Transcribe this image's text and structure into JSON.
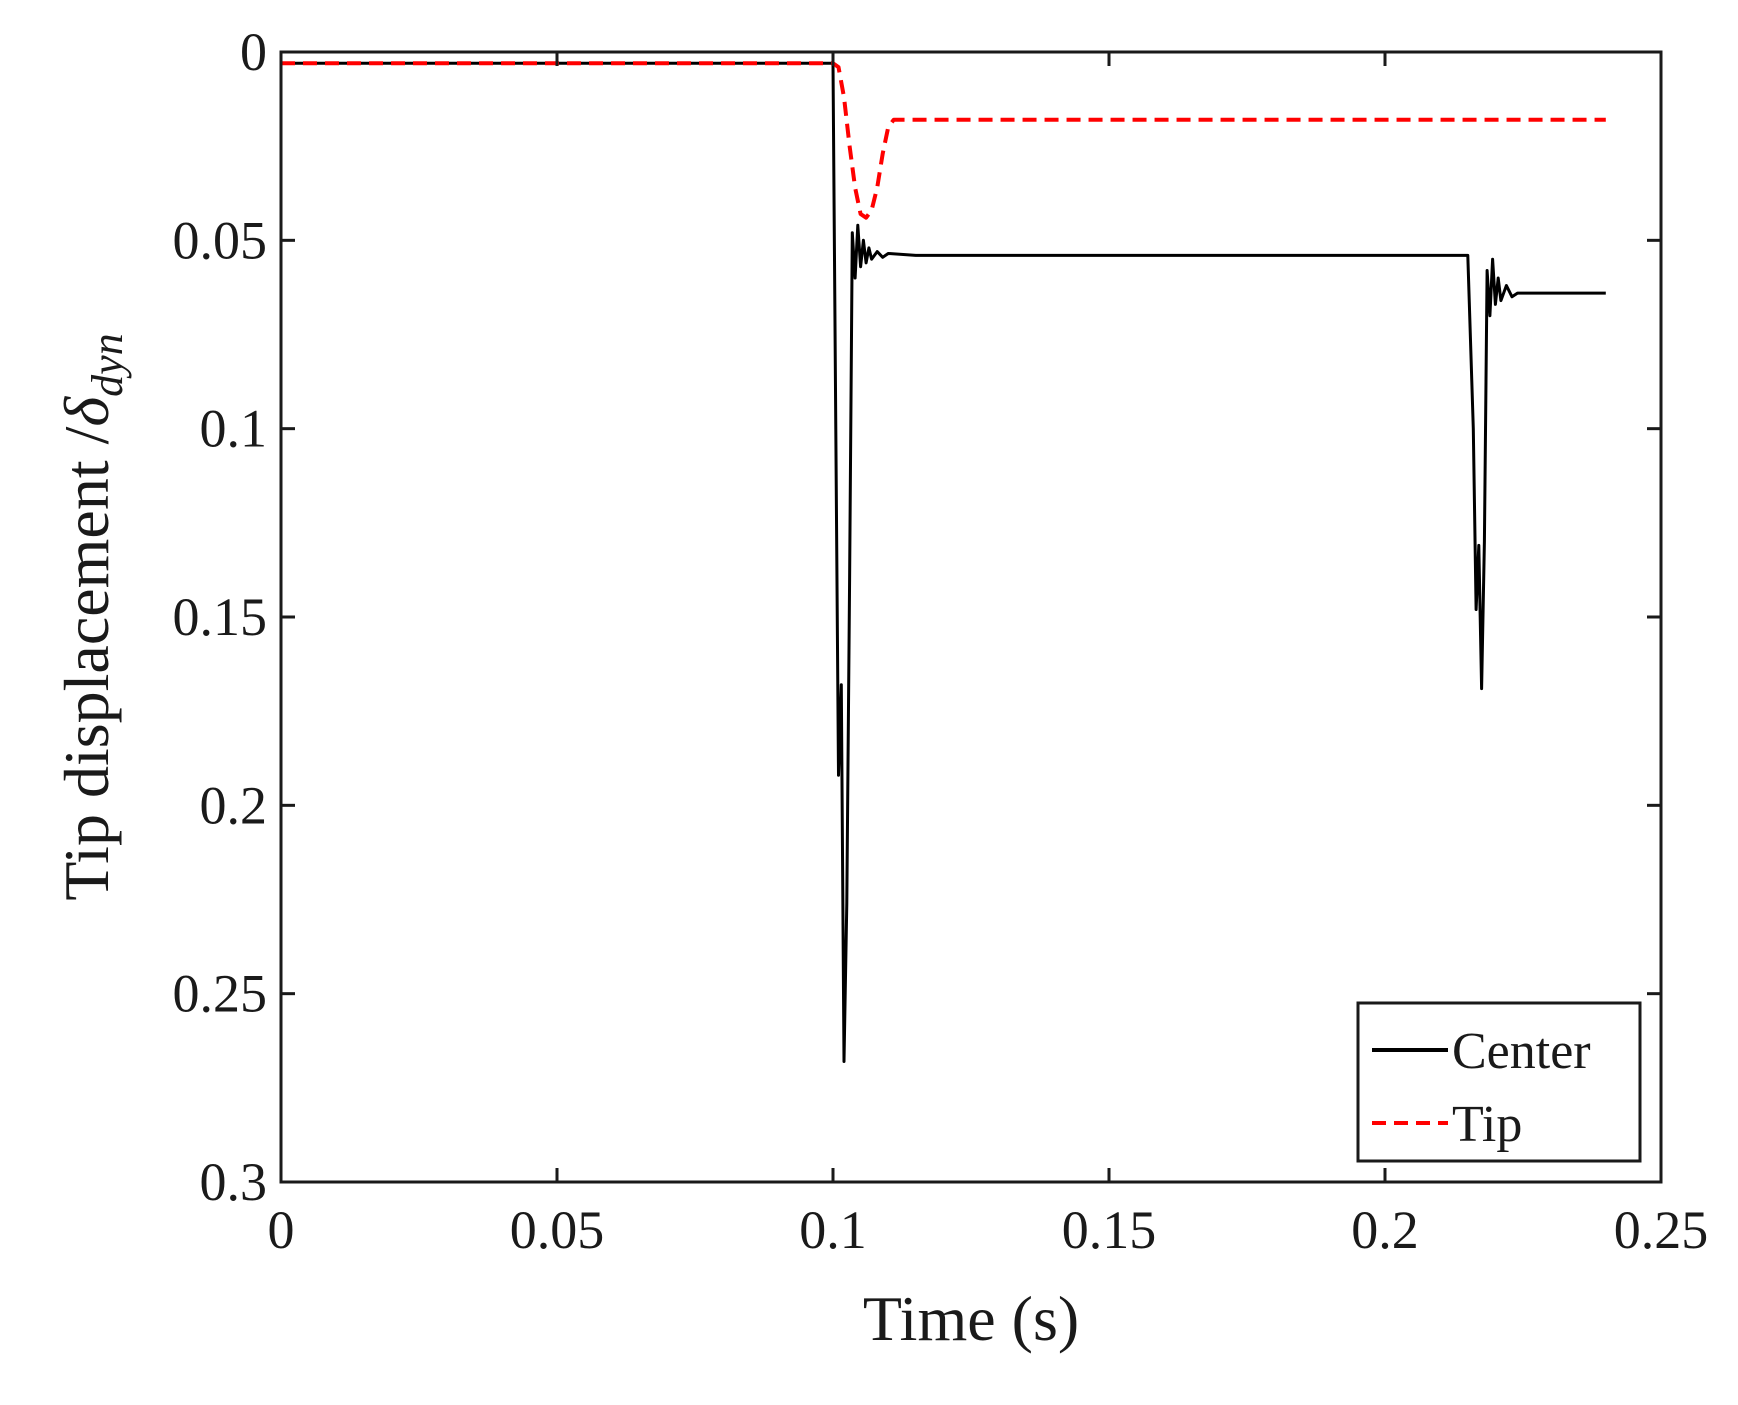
{
  "chart_data": {
    "type": "line",
    "xlabel": "Time (s)",
    "ylabel_main": "Tip displacement /",
    "ylabel_symbol": "δ",
    "ylabel_subscript": "dyn",
    "xlim": [
      0,
      0.25
    ],
    "ylim": [
      0,
      0.3
    ],
    "y_reversed": true,
    "grid": false,
    "x_ticks": [
      0,
      0.05,
      0.1,
      0.15,
      0.2,
      0.25
    ],
    "x_tick_labels": [
      "0",
      "0.05",
      "0.1",
      "0.15",
      "0.2",
      "0.25"
    ],
    "y_ticks": [
      0,
      0.05,
      0.1,
      0.15,
      0.2,
      0.25,
      0.3
    ],
    "y_tick_labels": [
      "0",
      "0.05",
      "0.1",
      "0.15",
      "0.2",
      "0.25",
      "0.3"
    ],
    "legend_position": "bottom-right",
    "series": [
      {
        "name": "Center",
        "color": "#000000",
        "dash": "solid",
        "x": [
          0,
          0.1,
          0.1005,
          0.101,
          0.1015,
          0.102,
          0.1025,
          0.103,
          0.1035,
          0.104,
          0.1045,
          0.105,
          0.1055,
          0.106,
          0.1065,
          0.107,
          0.108,
          0.109,
          0.11,
          0.115,
          0.2,
          0.215,
          0.216,
          0.2165,
          0.217,
          0.2175,
          0.218,
          0.2185,
          0.219,
          0.2195,
          0.22,
          0.2205,
          0.221,
          0.222,
          0.223,
          0.224,
          0.24
        ],
        "y": [
          0.003,
          0.003,
          0.1,
          0.192,
          0.168,
          0.268,
          0.226,
          0.14,
          0.048,
          0.06,
          0.046,
          0.057,
          0.05,
          0.056,
          0.052,
          0.055,
          0.053,
          0.0545,
          0.0535,
          0.054,
          0.054,
          0.054,
          0.1,
          0.148,
          0.131,
          0.169,
          0.13,
          0.058,
          0.07,
          0.055,
          0.067,
          0.06,
          0.066,
          0.062,
          0.065,
          0.064,
          0.064
        ]
      },
      {
        "name": "Tip",
        "color": "#ff0000",
        "dash": "dashed",
        "x": [
          0,
          0.1,
          0.101,
          0.102,
          0.103,
          0.104,
          0.105,
          0.106,
          0.107,
          0.108,
          0.109,
          0.11,
          0.111,
          0.12,
          0.24
        ],
        "y": [
          0.003,
          0.003,
          0.004,
          0.012,
          0.025,
          0.036,
          0.043,
          0.044,
          0.042,
          0.036,
          0.027,
          0.02,
          0.018,
          0.018,
          0.018
        ]
      }
    ]
  }
}
